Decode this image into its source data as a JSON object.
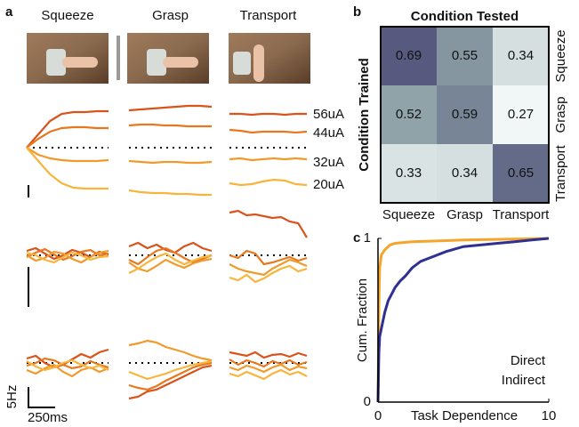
{
  "chart_data": [
    {
      "type": "traces",
      "label": "a",
      "columns": [
        "Squeeze",
        "Grasp",
        "Transport"
      ],
      "series": [
        {
          "name": "56uA",
          "color": "#d9531b"
        },
        {
          "name": "44uA",
          "color": "#e8781f"
        },
        {
          "name": "32uA",
          "color": "#f19a2c"
        },
        {
          "name": "20uA",
          "color": "#f7b53c"
        }
      ],
      "scale_y_label": "5Hz",
      "scale_x_label": "250ms",
      "traces": [
        [
          [
            [
              0,
              15,
              30,
              38,
              40,
              40,
              41,
              41
            ],
            [
              0,
              10,
              18,
              22,
              23,
              23,
              22,
              22
            ],
            [
              0,
              -8,
              -12,
              -14,
              -15,
              -15,
              -15,
              -14
            ],
            [
              0,
              -15,
              -30,
              -40,
              -45,
              -46,
              -46,
              -46
            ]
          ],
          [
            [
              42,
              43,
              44,
              45,
              46,
              47,
              47,
              46
            ],
            [
              25,
              26,
              26,
              25,
              25,
              24,
              24,
              24
            ],
            [
              -15,
              -16,
              -17,
              -16,
              -16,
              -17,
              -17,
              -16
            ],
            [
              -48,
              -50,
              -51,
              -51,
              -52,
              -52,
              -53,
              -53
            ]
          ],
          [
            [
              38,
              38,
              37,
              38,
              38,
              37,
              38,
              38
            ],
            [
              20,
              19,
              17,
              18,
              18,
              18,
              17,
              18
            ],
            [
              -13,
              -12,
              -14,
              -13,
              -12,
              -13,
              -12,
              -13
            ],
            [
              -40,
              -42,
              -41,
              -38,
              -36,
              -37,
              -41,
              -42
            ]
          ]
        ],
        [
          [
            [
              5,
              8,
              2,
              -4,
              0,
              6,
              3,
              -2,
              4,
              1
            ],
            [
              -2,
              3,
              7,
              1,
              -5,
              -1,
              4,
              6,
              0,
              2
            ],
            [
              0,
              -6,
              -3,
              4,
              2,
              -4,
              -8,
              -2,
              3,
              5
            ],
            [
              3,
              0,
              -5,
              -8,
              -2,
              3,
              0,
              -5,
              -2,
              -1
            ]
          ],
          [
            [
              10,
              14,
              8,
              12,
              6,
              3,
              10,
              14,
              8,
              5
            ],
            [
              -5,
              -10,
              -2,
              5,
              8,
              3,
              -3,
              -8,
              -4,
              0
            ],
            [
              -8,
              -15,
              -18,
              -12,
              -5,
              -10,
              -14,
              -9,
              -6,
              -4
            ],
            [
              -20,
              -15,
              -8,
              -2,
              2,
              -5,
              -10,
              -6,
              -2,
              0
            ]
          ],
          [
            [
              48,
              50,
              45,
              46,
              44,
              42,
              43,
              38,
              36,
              20
            ],
            [
              0,
              -3,
              5,
              2,
              -10,
              -8,
              -5,
              -2,
              -6,
              -3
            ],
            [
              -10,
              -15,
              -18,
              -20,
              -22,
              -15,
              -10,
              -5,
              -8,
              -12
            ],
            [
              -25,
              -28,
              -22,
              -30,
              -26,
              -20,
              -15,
              -12,
              -18,
              -15
            ]
          ]
        ],
        [
          [
            [
              5,
              8,
              0,
              -5,
              -2,
              4,
              10,
              6,
              12,
              15
            ],
            [
              -3,
              0,
              5,
              3,
              -2,
              -6,
              -4,
              2,
              -2,
              -5
            ],
            [
              -8,
              -12,
              -6,
              -2,
              -10,
              -15,
              -8,
              -5,
              -10,
              -6
            ],
            [
              2,
              -4,
              -8,
              -5,
              0,
              3,
              -2,
              -6,
              -3,
              -8
            ]
          ],
          [
            [
              -40,
              -38,
              -32,
              -30,
              -25,
              -20,
              -15,
              -10,
              -5,
              -3
            ],
            [
              -25,
              -28,
              -30,
              -26,
              -20,
              -15,
              -10,
              -5,
              -2,
              0
            ],
            [
              20,
              22,
              25,
              23,
              18,
              15,
              12,
              8,
              5,
              3
            ],
            [
              -10,
              -14,
              -18,
              -15,
              -12,
              -8,
              -5,
              -2,
              0,
              2
            ]
          ],
          [
            [
              12,
              10,
              8,
              12,
              6,
              9,
              10,
              7,
              11,
              8
            ],
            [
              4,
              -2,
              3,
              0,
              -4,
              2,
              -1,
              3,
              -2,
              1
            ],
            [
              -5,
              -8,
              -3,
              -6,
              -10,
              -5,
              -2,
              -8,
              -4,
              -6
            ],
            [
              -12,
              -15,
              -10,
              -14,
              -18,
              -12,
              -8,
              -13,
              -10,
              -15
            ]
          ]
        ]
      ]
    },
    {
      "type": "heatmap",
      "label": "b",
      "title": "Condition Tested",
      "ylabel": "Condition Trained",
      "columns": [
        "Squeeze",
        "Grasp",
        "Transport"
      ],
      "rows": [
        "Squeeze",
        "Grasp",
        "Transport"
      ],
      "values": [
        [
          0.69,
          0.55,
          0.34
        ],
        [
          0.52,
          0.59,
          0.27
        ],
        [
          0.33,
          0.34,
          0.65
        ]
      ]
    },
    {
      "type": "line",
      "label": "c",
      "xlabel": "Task Dependence",
      "ylabel": "Cum. Fraction",
      "xlim": [
        0,
        10
      ],
      "ylim": [
        0,
        1
      ],
      "xticks": [
        0,
        10
      ],
      "yticks": [
        0,
        1
      ],
      "series": [
        {
          "name": "Direct",
          "color": "#f5a52a",
          "x": [
            0,
            0.05,
            0.1,
            0.2,
            0.4,
            0.7,
            1,
            2,
            5,
            10
          ],
          "values": [
            0,
            0.6,
            0.82,
            0.9,
            0.93,
            0.96,
            0.97,
            0.98,
            0.99,
            1
          ]
        },
        {
          "name": "Indirect",
          "color": "#2e3192",
          "x": [
            0,
            0.05,
            0.1,
            0.2,
            0.4,
            0.6,
            0.8,
            1,
            1.3,
            1.6,
            2,
            2.5,
            3,
            4,
            5,
            6,
            7,
            8,
            9,
            10
          ],
          "values": [
            0,
            0.3,
            0.4,
            0.45,
            0.55,
            0.62,
            0.66,
            0.7,
            0.74,
            0.77,
            0.82,
            0.86,
            0.88,
            0.92,
            0.95,
            0.96,
            0.97,
            0.98,
            0.99,
            1
          ]
        }
      ]
    }
  ]
}
